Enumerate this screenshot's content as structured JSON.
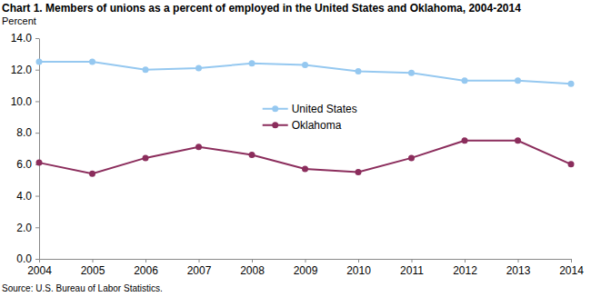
{
  "chart_data": {
    "type": "line",
    "title": "Chart 1. Members of unions as a percent of employed in the United States and Oklahoma, 2004-2014",
    "y_label": "Percent",
    "source": "Source: U.S. Bureau of Labor Statistics.",
    "x": [
      2004,
      2005,
      2006,
      2007,
      2008,
      2009,
      2010,
      2011,
      2012,
      2013,
      2014
    ],
    "xlim": [
      2004,
      2014
    ],
    "xticks": [
      2004,
      2005,
      2006,
      2007,
      2008,
      2009,
      2010,
      2011,
      2012,
      2013,
      2014
    ],
    "ylim": [
      0,
      14
    ],
    "yticks": [
      {
        "value": 0,
        "label": "0.0"
      },
      {
        "value": 2,
        "label": "2.0"
      },
      {
        "value": 4,
        "label": "4.0"
      },
      {
        "value": 6,
        "label": "6.0"
      },
      {
        "value": 8,
        "label": "8.0"
      },
      {
        "value": 10,
        "label": "10.0"
      },
      {
        "value": 12,
        "label": "12.0"
      },
      {
        "value": 14,
        "label": "14.0"
      }
    ],
    "grid": false,
    "legend": "center",
    "series": [
      {
        "name": "United States",
        "color": "#95c8f0",
        "marker": "circle",
        "values": [
          12.5,
          12.5,
          12.0,
          12.1,
          12.4,
          12.3,
          11.9,
          11.8,
          11.3,
          11.3,
          11.1
        ]
      },
      {
        "name": "Oklahoma",
        "color": "#8b2d5c",
        "marker": "circle",
        "values": [
          6.1,
          5.4,
          6.4,
          7.1,
          6.6,
          5.7,
          5.5,
          6.4,
          7.5,
          7.5,
          6.0
        ]
      }
    ]
  }
}
